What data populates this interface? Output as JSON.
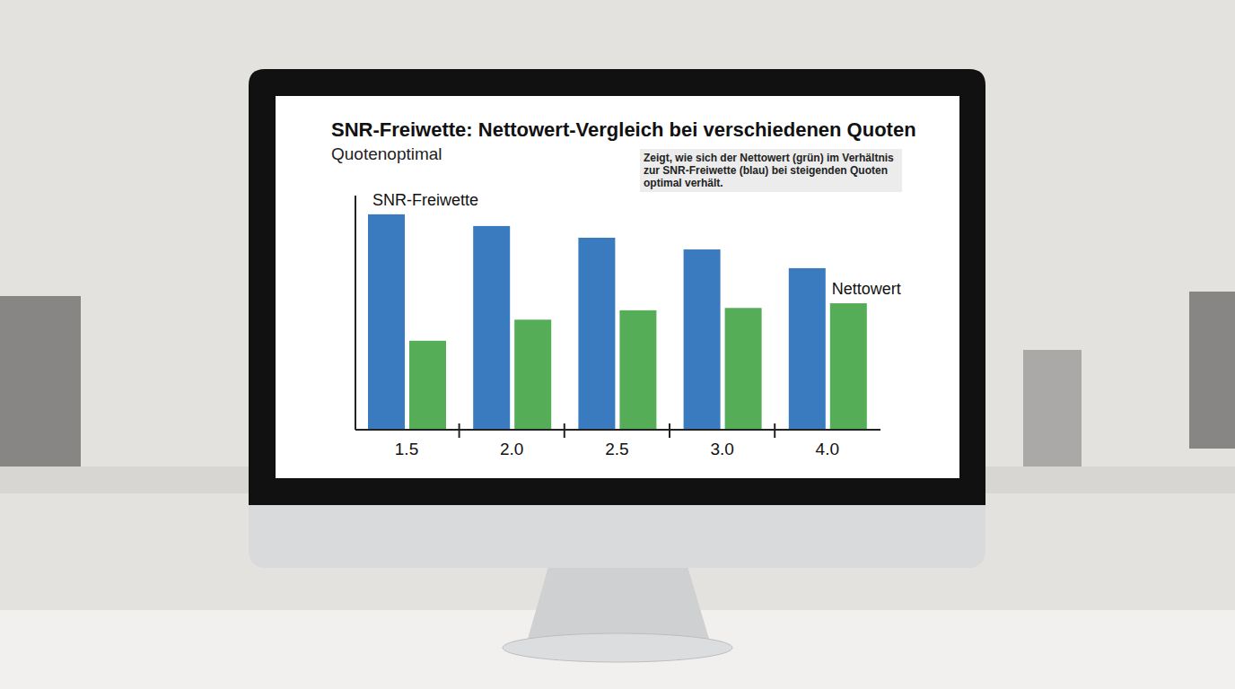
{
  "chart_data": {
    "type": "bar",
    "title": "SNR-Freiwette: Nettowert-Vergleich bei verschiedenen Quoten",
    "subtitle": "Quotenoptimal",
    "annotation": "Zeigt, wie sich der Nettowert (grün) im Verhältnis zur SNR-Freiwette (blau) bei steigenden Quoten optimal verhält.",
    "categories": [
      "1.5",
      "2.0",
      "2.5",
      "3.0",
      "4.0"
    ],
    "series": [
      {
        "name": "SNR-Freiwette",
        "color": "#3a7bbf",
        "values": [
          92,
          87,
          82,
          77,
          69
        ]
      },
      {
        "name": "Nettowert",
        "color": "#55ad58",
        "values": [
          38,
          47,
          51,
          52,
          54
        ]
      }
    ],
    "ylim": [
      0,
      100
    ],
    "tick_labels": "x",
    "grid": false
  }
}
